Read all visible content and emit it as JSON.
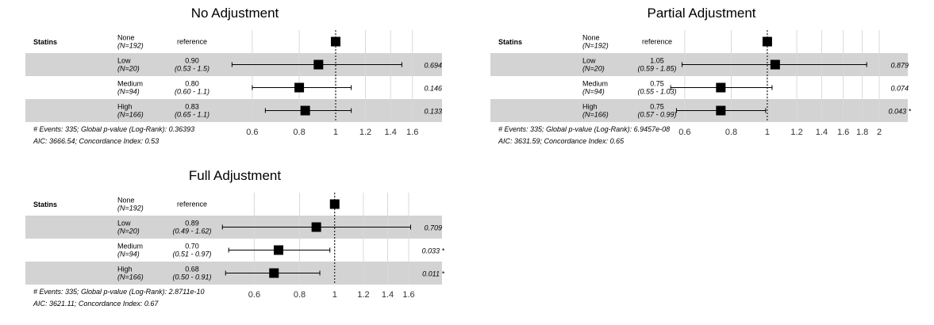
{
  "chart_data": [
    {
      "type": "forest",
      "title": "No Adjustment",
      "variable": "Statins",
      "rows": [
        {
          "level": "None",
          "n": "(N=192)",
          "hr_label": "reference",
          "ci_label": "",
          "p": "",
          "hr": 1.0,
          "lo": null,
          "hi": null
        },
        {
          "level": "Low",
          "n": "(N=20)",
          "hr_label": "0.90",
          "ci_label": "(0.53 - 1.5)",
          "p": "0.694",
          "hr": 0.9,
          "lo": 0.53,
          "hi": 1.5
        },
        {
          "level": "Medium",
          "n": "(N=94)",
          "hr_label": "0.80",
          "ci_label": "(0.60 - 1.1)",
          "p": "0.146",
          "hr": 0.8,
          "lo": 0.6,
          "hi": 1.1
        },
        {
          "level": "High",
          "n": "(N=166)",
          "hr_label": "0.83",
          "ci_label": "(0.65 - 1.1)",
          "p": "0.133",
          "hr": 0.83,
          "lo": 0.65,
          "hi": 1.1
        }
      ],
      "ticks": [
        "0.6",
        "0.8",
        "1",
        "1.2",
        "1.4",
        "1.6"
      ],
      "xlim": [
        0.48,
        1.65
      ],
      "scale": "log",
      "footer": [
        "# Events: 335; Global p-value (Log-Rank): 0.36393",
        "AIC: 3666.54; Concordance Index: 0.53"
      ]
    },
    {
      "type": "forest",
      "title": "Partial Adjustment",
      "variable": "Statins",
      "rows": [
        {
          "level": "None",
          "n": "(N=192)",
          "hr_label": "reference",
          "ci_label": "",
          "p": "",
          "hr": 1.0,
          "lo": null,
          "hi": null
        },
        {
          "level": "Low",
          "n": "(N=20)",
          "hr_label": "1.05",
          "ci_label": "(0.59 - 1.85)",
          "p": "0.879",
          "hr": 1.05,
          "lo": 0.59,
          "hi": 1.85
        },
        {
          "level": "Medium",
          "n": "(N=94)",
          "hr_label": "0.75",
          "ci_label": "(0.55 - 1.03)",
          "p": "0.074",
          "hr": 0.75,
          "lo": 0.55,
          "hi": 1.03
        },
        {
          "level": "High",
          "n": "(N=166)",
          "hr_label": "0.75",
          "ci_label": "(0.57 - 0.99)",
          "p": "0.043 *",
          "hr": 0.75,
          "lo": 0.57,
          "hi": 0.99
        }
      ],
      "ticks": [
        "0.6",
        "0.8",
        "1",
        "1.2",
        "1.4",
        "1.6",
        "1.8",
        "2"
      ],
      "xlim": [
        0.58,
        2.1
      ],
      "scale": "log",
      "footer": [
        "# Events: 335; Global p-value (Log-Rank): 6.9457e-08",
        "AIC: 3631.59; Concordance Index: 0.65"
      ]
    },
    {
      "type": "forest",
      "title": "Full Adjustment",
      "variable": "Statins",
      "rows": [
        {
          "level": "None",
          "n": "(N=192)",
          "hr_label": "reference",
          "ci_label": "",
          "p": "",
          "hr": 1.0,
          "lo": null,
          "hi": null
        },
        {
          "level": "Low",
          "n": "(N=20)",
          "hr_label": "0.89",
          "ci_label": "(0.49 - 1.62)",
          "p": "0.709",
          "hr": 0.89,
          "lo": 0.49,
          "hi": 1.62
        },
        {
          "level": "Medium",
          "n": "(N=94)",
          "hr_label": "0.70",
          "ci_label": "(0.51 - 0.97)",
          "p": "0.033 *",
          "hr": 0.7,
          "lo": 0.51,
          "hi": 0.97
        },
        {
          "level": "High",
          "n": "(N=166)",
          "hr_label": "0.68",
          "ci_label": "(0.50 - 0.91)",
          "p": "0.011 *",
          "hr": 0.68,
          "lo": 0.5,
          "hi": 0.91
        }
      ],
      "ticks": [
        "0.6",
        "0.8",
        "1",
        "1.2",
        "1.4",
        "1.6"
      ],
      "xlim": [
        0.47,
        1.7
      ],
      "scale": "log",
      "footer": [
        "# Events: 335; Global p-value (Log-Rank): 2.8711e-10",
        "AIC: 3621.11; Concordance Index: 0.67"
      ]
    }
  ],
  "colors": {
    "band": "#d3d3d3",
    "grid": "#d9d9d9",
    "marker": "#000000"
  }
}
